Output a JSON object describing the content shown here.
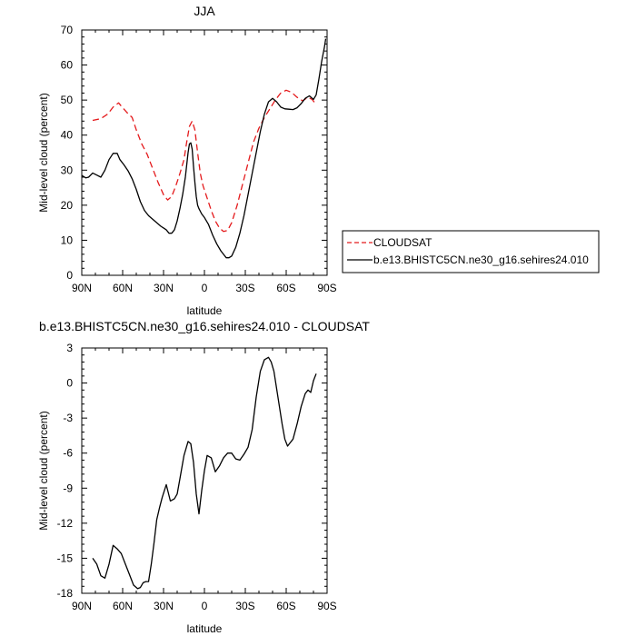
{
  "chart_data": [
    {
      "type": "line",
      "title": "JJA",
      "xlabel": "latitude",
      "ylabel": "Mid-level cloud (percent)",
      "xlim": [
        90,
        -90
      ],
      "ylim": [
        0,
        70
      ],
      "x_ticks": [
        90,
        60,
        30,
        0,
        -30,
        -60,
        -90
      ],
      "x_tick_labels": [
        "90N",
        "60N",
        "30N",
        "0",
        "30S",
        "60S",
        "90S"
      ],
      "y_ticks": [
        0,
        10,
        20,
        30,
        40,
        50,
        60,
        70
      ],
      "y_tick_labels": [
        "0",
        "10",
        "20",
        "30",
        "40",
        "50",
        "60",
        "70"
      ],
      "grid": false,
      "legend_position": "outside-right",
      "series": [
        {
          "name": "CLOUDSAT",
          "color": "#e41a1c",
          "dash": "dashed",
          "x": [
            82,
            76,
            71,
            67,
            63,
            60,
            57,
            53,
            50,
            46,
            42,
            38,
            34,
            30,
            27,
            24,
            21,
            18,
            15,
            13,
            11,
            9,
            7,
            5,
            3,
            1,
            -2,
            -5,
            -8,
            -11,
            -14,
            -17,
            -20,
            -24,
            -28,
            -32,
            -36,
            -40,
            -44,
            -48,
            -52,
            -56,
            -60,
            -64,
            -68,
            -72,
            -76,
            -79,
            -81
          ],
          "y": [
            44.2,
            44.7,
            46.0,
            48.0,
            49.2,
            47.8,
            46.5,
            45.0,
            41.5,
            37.5,
            34.5,
            30.5,
            26.5,
            23.0,
            21.5,
            22.5,
            25.5,
            29.0,
            33.0,
            38.0,
            42.5,
            44.0,
            41.5,
            35.0,
            29.0,
            25.5,
            22.0,
            18.5,
            15.5,
            13.5,
            12.5,
            12.8,
            15.0,
            20.0,
            26.0,
            32.0,
            38.0,
            42.0,
            45.0,
            47.5,
            50.0,
            52.0,
            52.8,
            52.2,
            50.8,
            49.8,
            50.8,
            50.2,
            49.2
          ]
        },
        {
          "name": "b.e13.BHISTC5CN.ne30_g16.sehires24.010",
          "color": "#000000",
          "dash": "solid",
          "x": [
            90,
            87,
            85,
            82,
            79,
            76,
            73,
            70,
            67,
            64,
            62,
            59,
            56,
            53,
            50,
            47,
            44,
            41,
            38,
            35,
            32,
            30,
            28,
            26,
            24,
            22,
            20,
            18,
            16,
            14,
            13,
            12,
            11,
            10,
            9,
            8,
            7,
            6,
            5,
            4,
            2,
            0,
            -3,
            -6,
            -9,
            -12,
            -14,
            -16,
            -18,
            -20,
            -23,
            -26,
            -29,
            -32,
            -35,
            -38,
            -41,
            -44,
            -47,
            -50,
            -53,
            -56,
            -59,
            -62,
            -65,
            -68,
            -71,
            -74,
            -77,
            -80,
            -82,
            -84,
            -86,
            -88,
            -89
          ],
          "y": [
            28.5,
            27.8,
            28.0,
            29.2,
            28.6,
            28.0,
            30.0,
            33.0,
            34.8,
            34.8,
            33.0,
            31.5,
            29.8,
            27.5,
            24.5,
            21.0,
            18.5,
            17.0,
            16.0,
            15.0,
            14.0,
            13.5,
            13.0,
            12.0,
            12.0,
            13.0,
            15.5,
            19.0,
            23.0,
            28.0,
            31.5,
            35.0,
            37.5,
            37.8,
            36.0,
            31.0,
            26.5,
            22.5,
            20.0,
            19.0,
            17.5,
            16.5,
            14.5,
            11.5,
            9.0,
            7.0,
            6.0,
            5.0,
            5.0,
            5.5,
            8.0,
            12.0,
            17.0,
            23.0,
            29.0,
            35.0,
            41.0,
            46.0,
            49.5,
            50.5,
            49.5,
            48.0,
            47.5,
            47.4,
            47.3,
            47.8,
            49.0,
            50.5,
            51.2,
            50.2,
            51.5,
            56.0,
            61.0,
            65.0,
            67.5
          ]
        }
      ]
    },
    {
      "type": "line",
      "title": "b.e13.BHISTC5CN.ne30_g16.sehires24.010 - CLOUDSAT",
      "xlabel": "latitude",
      "ylabel": "Mid-level cloud (percent)",
      "xlim": [
        90,
        -90
      ],
      "ylim": [
        -18,
        3
      ],
      "x_ticks": [
        90,
        60,
        30,
        0,
        -30,
        -60,
        -90
      ],
      "x_tick_labels": [
        "90N",
        "60N",
        "30N",
        "0",
        "30S",
        "60S",
        "90S"
      ],
      "y_ticks": [
        -18,
        -15,
        -12,
        -9,
        -6,
        -3,
        0,
        3
      ],
      "y_tick_labels": [
        "-18",
        "-15",
        "-12",
        "-9",
        "-6",
        "-3",
        "0",
        "3"
      ],
      "grid": false,
      "series": [
        {
          "name": "",
          "color": "#000000",
          "dash": "solid",
          "x": [
            82,
            79,
            76,
            73,
            70,
            67,
            64,
            61,
            58,
            55,
            52,
            49,
            47,
            45,
            43,
            41,
            39,
            37,
            35,
            33,
            31,
            28,
            25,
            22,
            20,
            18,
            15,
            12,
            10,
            8,
            6,
            4,
            2,
            0,
            -2,
            -5,
            -8,
            -11,
            -14,
            -17,
            -20,
            -23,
            -26,
            -29,
            -32,
            -35,
            -38,
            -41,
            -44,
            -47,
            -49,
            -51,
            -53,
            -55,
            -57,
            -59,
            -61,
            -63,
            -65,
            -68,
            -71,
            -74,
            -76,
            -78,
            -80,
            -82
          ],
          "y": [
            -15.0,
            -15.5,
            -16.5,
            -16.7,
            -15.5,
            -13.9,
            -14.2,
            -14.6,
            -15.5,
            -16.4,
            -17.3,
            -17.6,
            -17.5,
            -17.1,
            -17.0,
            -17.0,
            -15.5,
            -13.7,
            -11.7,
            -10.7,
            -9.8,
            -8.7,
            -10.1,
            -9.9,
            -9.5,
            -8.2,
            -6.2,
            -5.0,
            -5.2,
            -6.8,
            -9.5,
            -11.2,
            -9.2,
            -7.5,
            -6.2,
            -6.4,
            -7.6,
            -7.1,
            -6.4,
            -6.0,
            -6.0,
            -6.5,
            -6.6,
            -6.1,
            -5.5,
            -4.0,
            -1.2,
            1.0,
            2.0,
            2.2,
            1.8,
            1.0,
            -0.5,
            -2.0,
            -3.5,
            -4.8,
            -5.4,
            -5.1,
            -4.8,
            -3.5,
            -2.0,
            -0.9,
            -0.6,
            -0.8,
            0.2,
            0.8
          ]
        }
      ]
    }
  ]
}
